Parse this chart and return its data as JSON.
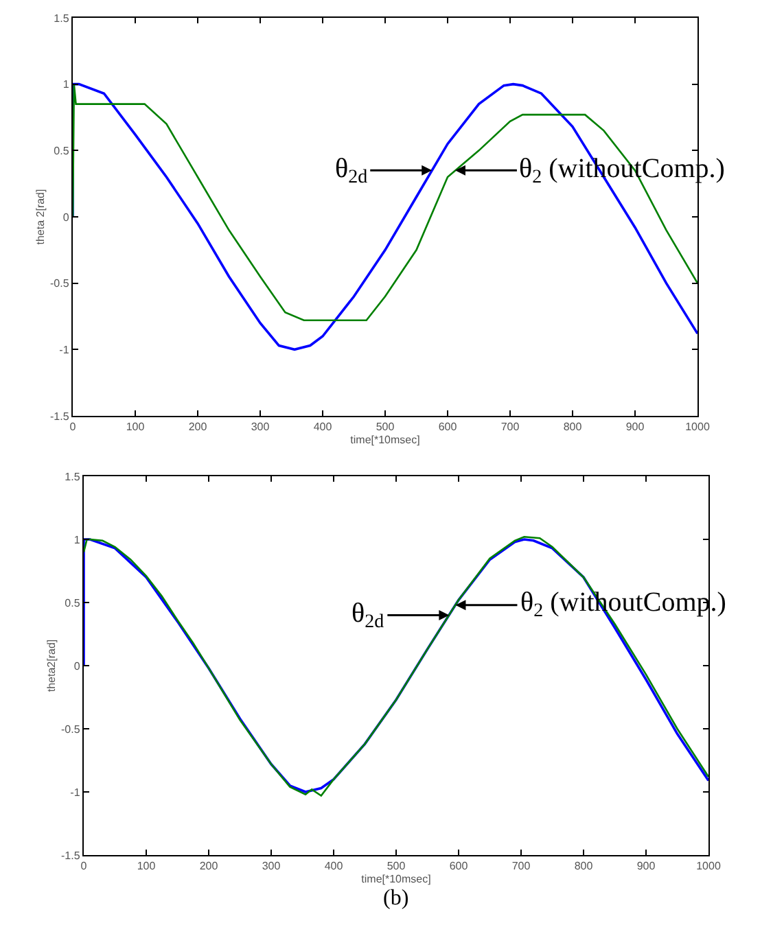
{
  "chart_data": [
    {
      "type": "line",
      "xlabel": "time[*10msec]",
      "ylabel": "theta 2[rad]",
      "xlim": [
        0,
        1000
      ],
      "xticks": [
        0,
        100,
        200,
        300,
        400,
        500,
        600,
        700,
        800,
        900,
        1000
      ],
      "ylim": [
        -1.5,
        1.5
      ],
      "yticks": [
        -1.5,
        -1,
        -0.5,
        0,
        0.5,
        1,
        1.5
      ],
      "line_style": "solid",
      "marker": "none",
      "series": [
        {
          "color": "#0000ff",
          "x": [
            0,
            0,
            10,
            50,
            100,
            150,
            200,
            250,
            300,
            330,
            355,
            380,
            400,
            450,
            500,
            550,
            600,
            650,
            690,
            705,
            720,
            750,
            800,
            850,
            900,
            950,
            1000
          ],
          "values": [
            0,
            1,
            1,
            0.93,
            0.62,
            0.3,
            -0.05,
            -0.45,
            -0.8,
            -0.97,
            -1,
            -0.97,
            -0.9,
            -0.6,
            -0.25,
            0.15,
            0.55,
            0.85,
            0.99,
            1,
            0.99,
            0.93,
            0.68,
            0.3,
            -0.08,
            -0.5,
            -0.88
          ]
        },
        {
          "color": "#008000",
          "x": [
            0,
            2,
            5,
            115,
            150,
            200,
            250,
            300,
            340,
            370,
            470,
            500,
            550,
            600,
            650,
            700,
            720,
            820,
            850,
            900,
            950,
            1000
          ],
          "values": [
            0,
            1,
            0.85,
            0.85,
            0.7,
            0.3,
            -0.1,
            -0.45,
            -0.72,
            -0.78,
            -0.78,
            -0.6,
            -0.25,
            0.3,
            0.5,
            0.72,
            0.77,
            0.77,
            0.65,
            0.35,
            -0.1,
            -0.5
          ]
        }
      ],
      "annotations": [
        {
          "text": "θ$_{2d}$",
          "x": 575,
          "y": 0.35
        },
        {
          "text": "θ$_{2}$ (withoutComp.)",
          "x": 612,
          "y": 0.35
        }
      ]
    },
    {
      "type": "line",
      "xlabel": "time[*10msec]",
      "ylabel": "theta2[rad]",
      "xlim": [
        0,
        1000
      ],
      "xticks": [
        0,
        100,
        200,
        300,
        400,
        500,
        600,
        700,
        800,
        900,
        1000
      ],
      "ylim": [
        -1.5,
        1.5
      ],
      "yticks": [
        -1.5,
        -1,
        -0.5,
        0,
        0.5,
        1,
        1.5
      ],
      "line_style": "solid",
      "marker": "none",
      "series": [
        {
          "color": "#0000ff",
          "x": [
            0,
            0,
            10,
            50,
            100,
            150,
            200,
            250,
            300,
            330,
            355,
            380,
            400,
            450,
            500,
            550,
            600,
            650,
            690,
            705,
            720,
            750,
            800,
            850,
            900,
            950,
            1000
          ],
          "values": [
            0,
            1,
            1,
            0.93,
            0.7,
            0.35,
            -0.02,
            -0.42,
            -0.78,
            -0.95,
            -1,
            -0.97,
            -0.9,
            -0.62,
            -0.27,
            0.13,
            0.52,
            0.84,
            0.98,
            1,
            0.99,
            0.93,
            0.7,
            0.3,
            -0.11,
            -0.54,
            -0.91
          ]
        },
        {
          "color": "#008000",
          "x": [
            0,
            5,
            10,
            30,
            50,
            75,
            100,
            125,
            150,
            175,
            200,
            250,
            300,
            330,
            355,
            365,
            380,
            400,
            450,
            500,
            550,
            600,
            650,
            690,
            705,
            730,
            750,
            800,
            850,
            900,
            950,
            1000
          ],
          "values": [
            0.9,
            1,
            1,
            0.99,
            0.94,
            0.84,
            0.71,
            0.55,
            0.36,
            0.18,
            -0.02,
            -0.43,
            -0.78,
            -0.96,
            -1.02,
            -0.98,
            -1.03,
            -0.9,
            -0.62,
            -0.27,
            0.13,
            0.52,
            0.85,
            0.99,
            1.02,
            1.01,
            0.94,
            0.7,
            0.33,
            -0.07,
            -0.5,
            -0.88
          ]
        }
      ],
      "annotations": [
        {
          "text": "θ$_{2d}$",
          "x": 585,
          "y": 0.4
        },
        {
          "text": "θ$_{2}$ (withoutComp.)",
          "x": 595,
          "y": 0.48
        },
        "(b)"
      ]
    }
  ]
}
